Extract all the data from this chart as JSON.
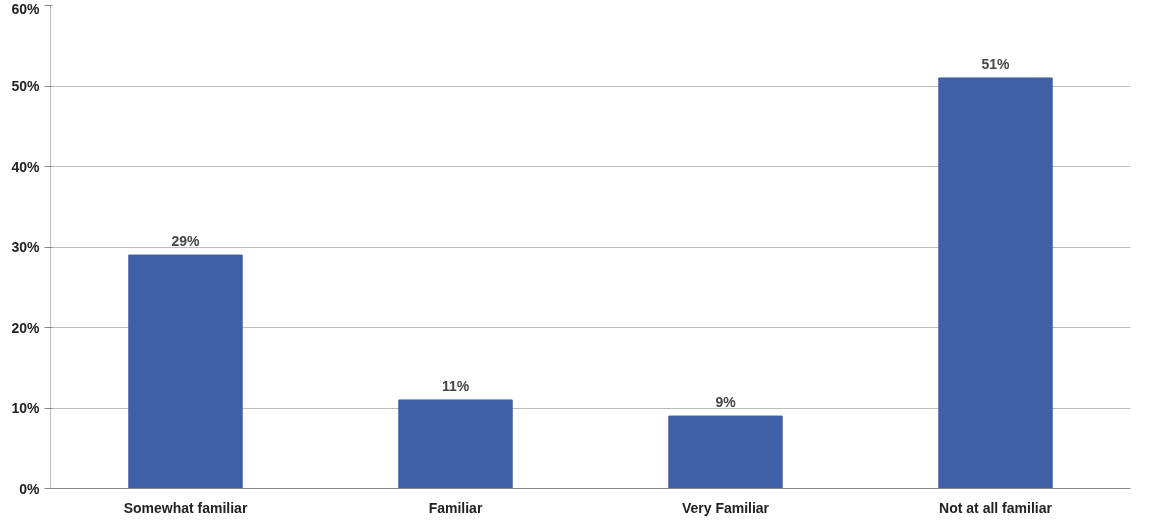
{
  "chart_data": {
    "type": "bar",
    "categories": [
      "Somewhat familiar",
      "Familiar",
      "Very Familiar",
      "Not at all familiar"
    ],
    "values": [
      29,
      11,
      9,
      51
    ],
    "value_labels": [
      "29%",
      "11%",
      "9%",
      "51%"
    ],
    "color": "#3f5fa6",
    "ylim": [
      0,
      60
    ],
    "yticks": [
      {
        "value": 0,
        "label": "0%"
      },
      {
        "value": 10,
        "label": "10%"
      },
      {
        "value": 20,
        "label": "20%"
      },
      {
        "value": 30,
        "label": "30%"
      },
      {
        "value": 40,
        "label": "40%"
      },
      {
        "value": 50,
        "label": "50%"
      },
      {
        "value": 60,
        "label": "60%"
      }
    ],
    "grid": "y"
  }
}
